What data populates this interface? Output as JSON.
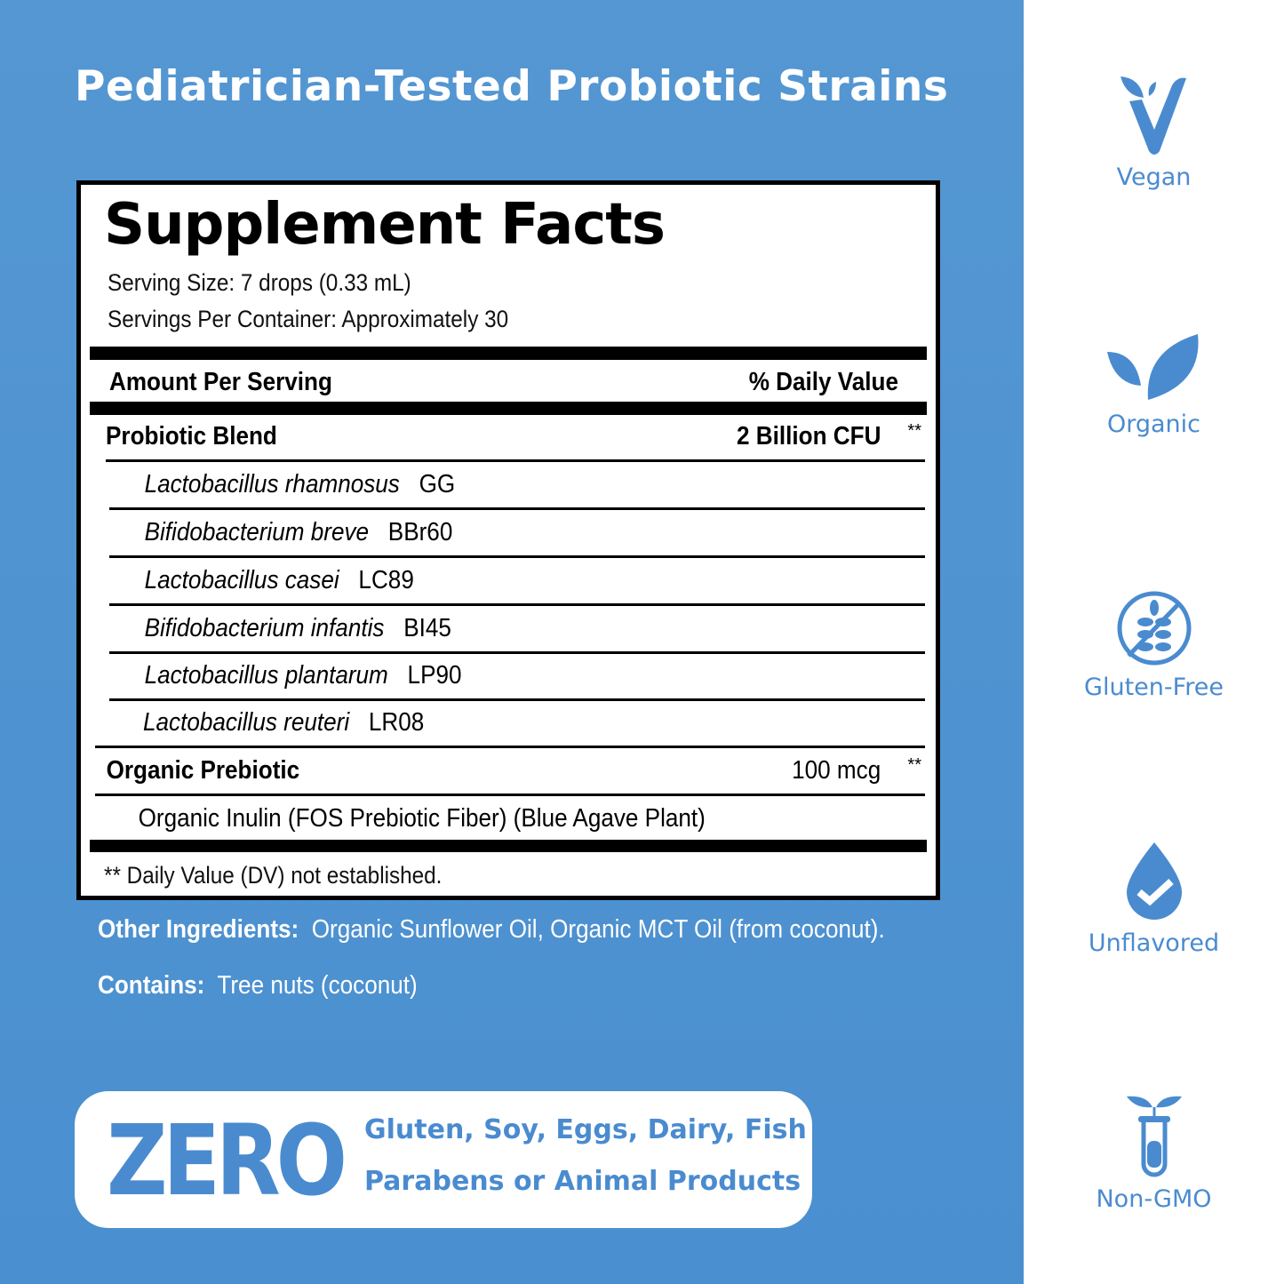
{
  "title": "Pediatrician-Tested Probiotic Strains",
  "facts": {
    "heading": "Supplement Facts",
    "serving_size": "Serving Size: 7 drops (0.33 mL)",
    "servings_per_container": "Servings Per Container: Approximately 30",
    "amount_header": "Amount Per Serving",
    "dv_header": "% Daily Value",
    "blend": {
      "name": "Probiotic Blend",
      "amount": "2 Billion CFU",
      "dv": "**"
    },
    "strains": [
      {
        "species": "Lactobacillus rhamnosus",
        "code": "GG"
      },
      {
        "species": "Bifidobacterium breve",
        "code": "BBr60"
      },
      {
        "species": "Lactobacillus casei",
        "code": "LC89"
      },
      {
        "species": "Bifidobacterium infantis",
        "code": "BI45"
      },
      {
        "species": "Lactobacillus plantarum",
        "code": "LP90"
      },
      {
        "species": "Lactobacillus reuteri",
        "code": "LR08"
      }
    ],
    "prebiotic": {
      "name": "Organic Prebiotic",
      "amount": "100 mcg",
      "dv": "**",
      "detail": "Organic Inulin (FOS Prebiotic Fiber) (Blue Agave Plant)"
    },
    "footnote": "** Daily Value (DV) not established."
  },
  "other_ingredients": {
    "label": "Other Ingredients:",
    "value": "Organic Sunflower Oil, Organic MCT Oil (from coconut)."
  },
  "contains": {
    "label": "Contains:",
    "value": "Tree nuts (coconut)"
  },
  "zero": {
    "big": "ZERO",
    "line1": "Gluten, Soy, Eggs, Dairy, Fish",
    "line2": "Parabens or Animal Products"
  },
  "badges": [
    {
      "icon": "vegan-v-icon",
      "label": "Vegan"
    },
    {
      "icon": "leaf-icon",
      "label": "Organic"
    },
    {
      "icon": "no-wheat-icon",
      "label": "Gluten-Free"
    },
    {
      "icon": "drop-check-icon",
      "label": "Unflavored"
    },
    {
      "icon": "test-tube-plant-icon",
      "label": "Non-GMO"
    }
  ],
  "colors": {
    "panel": "#4a8fd0",
    "accent": "#4a8bd0"
  }
}
